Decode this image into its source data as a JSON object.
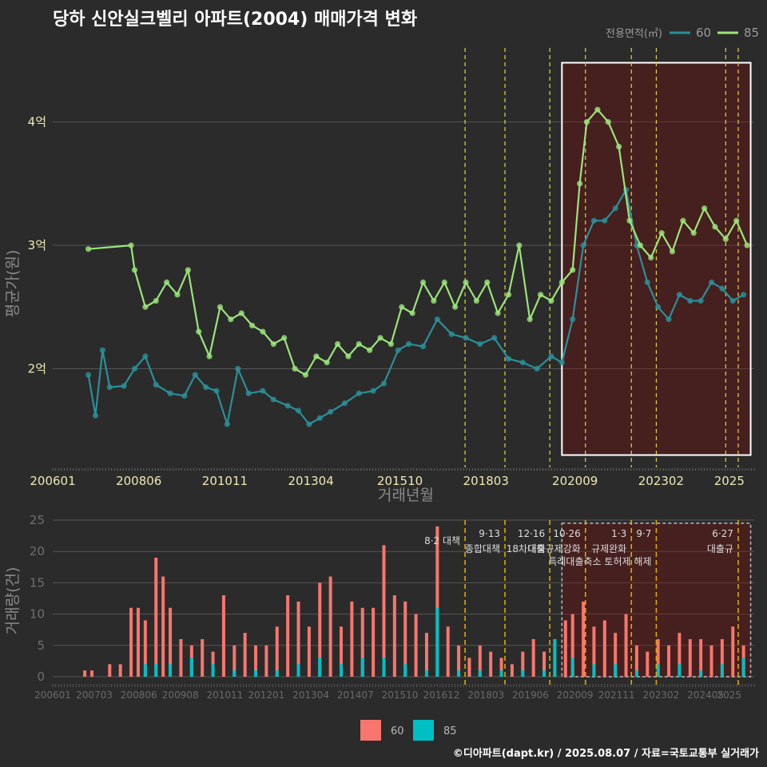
{
  "title": "당하 신안실크벨리 아파트(2004) 매매가격 변화",
  "source": "©디아파트(dapt.kr) / 2025.08.07 / 자료=국토교통부 실거래가",
  "chart_data": [
    {
      "type": "line",
      "xlabel": "거래년월",
      "ylabel": "평균가(원)",
      "x_ticks": [
        "200601",
        "200806",
        "201011",
        "201304",
        "201510",
        "201803",
        "202009",
        "202302",
        "2025"
      ],
      "y_ticks": [
        "2억",
        "3억",
        "4억"
      ],
      "y_tick_values": [
        2,
        3,
        4
      ],
      "ylim": [
        1.2,
        4.6
      ],
      "xlim": [
        2006.0,
        2025.7
      ],
      "legend_title": "전용면적(㎡)",
      "legend_position": "top-right",
      "highlight_box": {
        "from": 2020.3,
        "to": 2025.6,
        "ymin": 1.3,
        "ymax": 4.48
      },
      "policy_lines": [
        2017.58,
        2018.7,
        2019.96,
        2020.96,
        2022.25,
        2022.95,
        2024.9,
        2025.25
      ],
      "series": [
        {
          "name": "60",
          "color": "#2a9098",
          "values": [
            [
              2007.0,
              1.95
            ],
            [
              2007.2,
              1.62
            ],
            [
              2007.4,
              2.15
            ],
            [
              2007.6,
              1.85
            ],
            [
              2008.0,
              1.86
            ],
            [
              2008.3,
              2.0
            ],
            [
              2008.6,
              2.1
            ],
            [
              2008.9,
              1.87
            ],
            [
              2009.3,
              1.8
            ],
            [
              2009.7,
              1.78
            ],
            [
              2010.0,
              1.95
            ],
            [
              2010.3,
              1.85
            ],
            [
              2010.6,
              1.82
            ],
            [
              2010.9,
              1.55
            ],
            [
              2011.2,
              2.0
            ],
            [
              2011.5,
              1.8
            ],
            [
              2011.9,
              1.82
            ],
            [
              2012.2,
              1.75
            ],
            [
              2012.6,
              1.7
            ],
            [
              2012.9,
              1.66
            ],
            [
              2013.2,
              1.55
            ],
            [
              2013.5,
              1.6
            ],
            [
              2013.8,
              1.65
            ],
            [
              2014.2,
              1.72
            ],
            [
              2014.6,
              1.8
            ],
            [
              2015.0,
              1.82
            ],
            [
              2015.3,
              1.88
            ],
            [
              2015.7,
              2.15
            ],
            [
              2016.0,
              2.2
            ],
            [
              2016.4,
              2.18
            ],
            [
              2016.8,
              2.4
            ],
            [
              2017.2,
              2.28
            ],
            [
              2017.6,
              2.25
            ],
            [
              2018.0,
              2.2
            ],
            [
              2018.4,
              2.25
            ],
            [
              2018.8,
              2.08
            ],
            [
              2019.2,
              2.05
            ],
            [
              2019.6,
              2.0
            ],
            [
              2020.0,
              2.1
            ],
            [
              2020.3,
              2.05
            ],
            [
              2020.6,
              2.4
            ],
            [
              2020.9,
              3.0
            ],
            [
              2021.2,
              3.2
            ],
            [
              2021.5,
              3.2
            ],
            [
              2021.8,
              3.3
            ],
            [
              2022.1,
              3.45
            ],
            [
              2022.4,
              3.0
            ],
            [
              2022.7,
              2.7
            ],
            [
              2023.0,
              2.5
            ],
            [
              2023.3,
              2.4
            ],
            [
              2023.6,
              2.6
            ],
            [
              2023.9,
              2.55
            ],
            [
              2024.2,
              2.55
            ],
            [
              2024.5,
              2.7
            ],
            [
              2024.8,
              2.65
            ],
            [
              2025.1,
              2.55
            ],
            [
              2025.4,
              2.6
            ]
          ]
        },
        {
          "name": "85",
          "color": "#9be47a",
          "values": [
            [
              2007.0,
              2.97
            ],
            [
              2008.2,
              3.0
            ],
            [
              2008.3,
              2.8
            ],
            [
              2008.6,
              2.5
            ],
            [
              2008.9,
              2.55
            ],
            [
              2009.2,
              2.7
            ],
            [
              2009.5,
              2.6
            ],
            [
              2009.8,
              2.8
            ],
            [
              2010.1,
              2.3
            ],
            [
              2010.4,
              2.1
            ],
            [
              2010.7,
              2.5
            ],
            [
              2011.0,
              2.4
            ],
            [
              2011.3,
              2.45
            ],
            [
              2011.6,
              2.35
            ],
            [
              2011.9,
              2.3
            ],
            [
              2012.2,
              2.2
            ],
            [
              2012.5,
              2.25
            ],
            [
              2012.8,
              2.0
            ],
            [
              2013.1,
              1.95
            ],
            [
              2013.4,
              2.1
            ],
            [
              2013.7,
              2.05
            ],
            [
              2014.0,
              2.2
            ],
            [
              2014.3,
              2.1
            ],
            [
              2014.6,
              2.2
            ],
            [
              2014.9,
              2.15
            ],
            [
              2015.2,
              2.25
            ],
            [
              2015.5,
              2.2
            ],
            [
              2015.8,
              2.5
            ],
            [
              2016.1,
              2.45
            ],
            [
              2016.4,
              2.7
            ],
            [
              2016.7,
              2.55
            ],
            [
              2017.0,
              2.7
            ],
            [
              2017.3,
              2.5
            ],
            [
              2017.6,
              2.7
            ],
            [
              2017.9,
              2.55
            ],
            [
              2018.2,
              2.7
            ],
            [
              2018.5,
              2.45
            ],
            [
              2018.8,
              2.6
            ],
            [
              2019.1,
              3.0
            ],
            [
              2019.4,
              2.4
            ],
            [
              2019.7,
              2.6
            ],
            [
              2020.0,
              2.55
            ],
            [
              2020.3,
              2.7
            ],
            [
              2020.6,
              2.8
            ],
            [
              2020.8,
              3.5
            ],
            [
              2021.0,
              4.0
            ],
            [
              2021.3,
              4.1
            ],
            [
              2021.6,
              4.0
            ],
            [
              2021.9,
              3.8
            ],
            [
              2022.2,
              3.2
            ],
            [
              2022.5,
              3.0
            ],
            [
              2022.8,
              2.9
            ],
            [
              2023.1,
              3.1
            ],
            [
              2023.4,
              2.95
            ],
            [
              2023.7,
              3.2
            ],
            [
              2024.0,
              3.1
            ],
            [
              2024.3,
              3.3
            ],
            [
              2024.6,
              3.15
            ],
            [
              2024.9,
              3.05
            ],
            [
              2025.2,
              3.2
            ],
            [
              2025.5,
              3.0
            ]
          ]
        }
      ]
    },
    {
      "type": "bar",
      "xlabel": "",
      "ylabel": "거래량(건)",
      "x_ticks": [
        "200601",
        "200703",
        "200806",
        "200908",
        "201011",
        "201201",
        "201304",
        "201407",
        "201510",
        "201612",
        "201803",
        "201906",
        "202009",
        "202111",
        "202302",
        "202405",
        "2025"
      ],
      "y_ticks": [
        "0",
        "5",
        "10",
        "15",
        "20",
        "25"
      ],
      "y_tick_values": [
        0,
        5,
        10,
        15,
        20,
        25
      ],
      "ylim": [
        0,
        25
      ],
      "xlim": [
        2006.0,
        2025.7
      ],
      "highlight_box": {
        "from": 2020.3,
        "to": 2025.6,
        "ymin": 0,
        "ymax": 24.5
      },
      "annotations": [
        {
          "x": 2017.58,
          "date": "8·2",
          "label": "대책"
        },
        {
          "x": 2018.7,
          "date": "9·13",
          "label": "종합대책"
        },
        {
          "x": 2019.96,
          "date": "12·16",
          "label": "18차대책"
        },
        {
          "x": 2020.96,
          "date": "10·26",
          "label": "대출규제강화"
        },
        {
          "x": 2022.25,
          "date": "1·3",
          "label": "규제완화"
        },
        {
          "x": 2022.95,
          "date": "9·7",
          "label": "특례대출축소 토허제 해제"
        },
        {
          "x": 2025.25,
          "date": "6·27",
          "label": "대출규"
        }
      ],
      "series": [
        {
          "name": "60",
          "color": "#f8766d",
          "values": [
            [
              2006.9,
              1
            ],
            [
              2007.1,
              1
            ],
            [
              2007.6,
              2
            ],
            [
              2007.9,
              2
            ],
            [
              2008.2,
              11
            ],
            [
              2008.4,
              11
            ],
            [
              2008.6,
              9
            ],
            [
              2008.9,
              19
            ],
            [
              2009.1,
              16
            ],
            [
              2009.3,
              11
            ],
            [
              2009.6,
              6
            ],
            [
              2009.9,
              5
            ],
            [
              2010.2,
              6
            ],
            [
              2010.5,
              4
            ],
            [
              2010.8,
              13
            ],
            [
              2011.1,
              5
            ],
            [
              2011.4,
              7
            ],
            [
              2011.7,
              5
            ],
            [
              2012.0,
              5
            ],
            [
              2012.3,
              8
            ],
            [
              2012.6,
              13
            ],
            [
              2012.9,
              12
            ],
            [
              2013.2,
              8
            ],
            [
              2013.5,
              15
            ],
            [
              2013.8,
              16
            ],
            [
              2014.1,
              8
            ],
            [
              2014.4,
              12
            ],
            [
              2014.7,
              11
            ],
            [
              2015.0,
              11
            ],
            [
              2015.3,
              21
            ],
            [
              2015.6,
              13
            ],
            [
              2015.9,
              12
            ],
            [
              2016.2,
              10
            ],
            [
              2016.5,
              7
            ],
            [
              2016.8,
              24
            ],
            [
              2017.1,
              8
            ],
            [
              2017.4,
              5
            ],
            [
              2017.7,
              3
            ],
            [
              2018.0,
              5
            ],
            [
              2018.3,
              4
            ],
            [
              2018.6,
              3
            ],
            [
              2018.9,
              2
            ],
            [
              2019.2,
              4
            ],
            [
              2019.5,
              6
            ],
            [
              2019.8,
              4
            ],
            [
              2020.1,
              6
            ],
            [
              2020.4,
              9
            ],
            [
              2020.6,
              10
            ],
            [
              2020.9,
              12
            ],
            [
              2021.2,
              8
            ],
            [
              2021.5,
              9
            ],
            [
              2021.8,
              7
            ],
            [
              2022.1,
              10
            ],
            [
              2022.4,
              5
            ],
            [
              2022.7,
              4
            ],
            [
              2023.0,
              6
            ],
            [
              2023.3,
              5
            ],
            [
              2023.6,
              7
            ],
            [
              2023.9,
              6
            ],
            [
              2024.2,
              6
            ],
            [
              2024.5,
              5
            ],
            [
              2024.8,
              6
            ],
            [
              2025.1,
              8
            ],
            [
              2025.4,
              5
            ]
          ]
        },
        {
          "name": "85",
          "color": "#00bfc4",
          "values": [
            [
              2008.6,
              2
            ],
            [
              2008.9,
              2
            ],
            [
              2009.3,
              2
            ],
            [
              2009.9,
              3
            ],
            [
              2010.5,
              2
            ],
            [
              2011.1,
              1
            ],
            [
              2011.7,
              1
            ],
            [
              2012.3,
              1
            ],
            [
              2012.9,
              2
            ],
            [
              2013.5,
              3
            ],
            [
              2014.1,
              2
            ],
            [
              2014.7,
              3
            ],
            [
              2015.3,
              3
            ],
            [
              2015.9,
              2
            ],
            [
              2016.5,
              1
            ],
            [
              2016.8,
              11
            ],
            [
              2017.4,
              1
            ],
            [
              2018.0,
              1
            ],
            [
              2018.6,
              1
            ],
            [
              2019.2,
              1
            ],
            [
              2019.8,
              1
            ],
            [
              2020.1,
              6
            ],
            [
              2020.6,
              3
            ],
            [
              2021.2,
              2
            ],
            [
              2021.8,
              2
            ],
            [
              2022.4,
              1
            ],
            [
              2023.0,
              2
            ],
            [
              2023.6,
              2
            ],
            [
              2024.2,
              1
            ],
            [
              2024.8,
              2
            ],
            [
              2025.4,
              3
            ]
          ]
        }
      ]
    }
  ]
}
